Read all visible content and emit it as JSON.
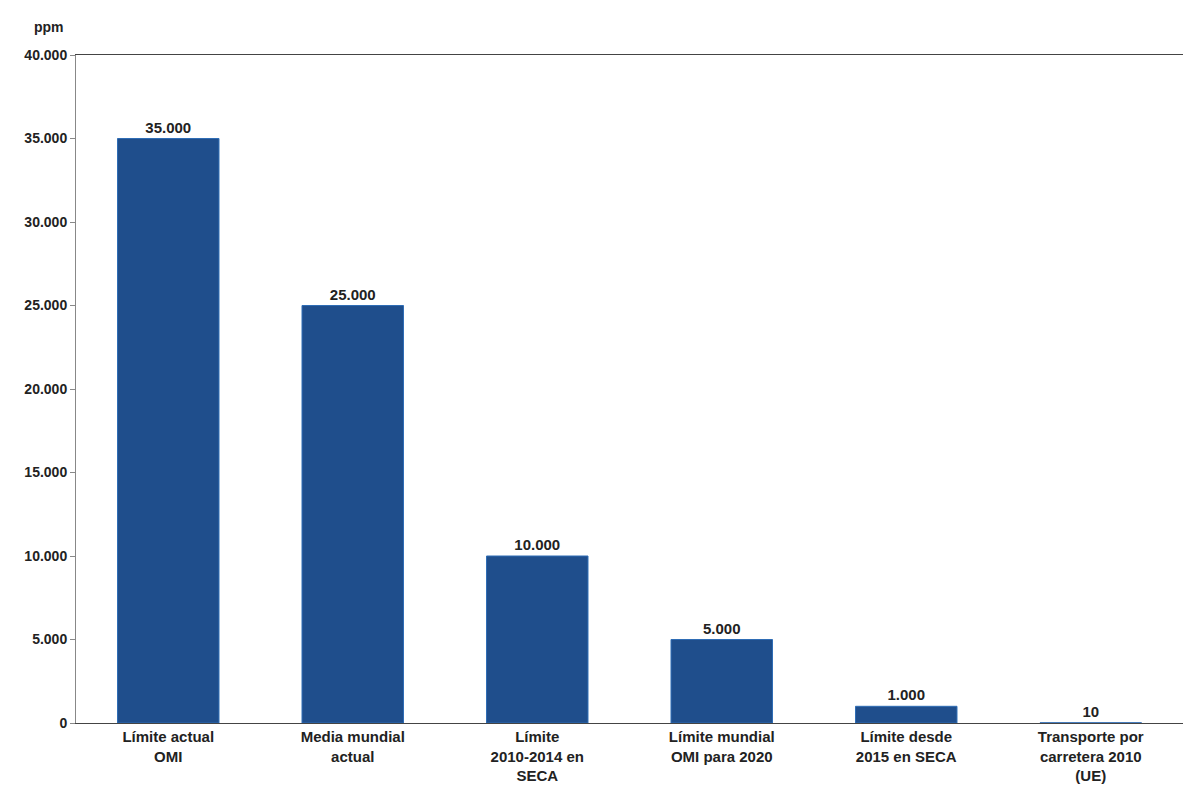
{
  "chart_data": {
    "type": "bar",
    "ylabel": "ppm",
    "categories": [
      "Límite actual OMI",
      "Media mundial actual",
      "Límite 2010-2014 en SECA",
      "Límite mundial OMI para 2020",
      "Límite desde 2015 en SECA",
      "Transporte por carretera 2010 (UE)"
    ],
    "values": [
      35000,
      25000,
      10000,
      5000,
      1000,
      10
    ],
    "value_labels": [
      "35.000",
      "25.000",
      "10.000",
      "5.000",
      "1.000",
      "10"
    ],
    "data_labels": true,
    "color": "#1f4e8c",
    "ylim": [
      0,
      40000
    ],
    "yticks": [
      0,
      {
        "value": 5000,
        "label": "5.000"
      },
      {
        "value": 10000,
        "label": "10.000"
      },
      {
        "value": 15000,
        "label": "15.000"
      },
      {
        "value": 20000,
        "label": "20.000"
      },
      {
        "value": 25000,
        "label": "25.000"
      },
      {
        "value": 30000,
        "label": "30.000"
      },
      {
        "value": 35000,
        "label": "35.000"
      },
      {
        "value": 40000,
        "label": "40.000"
      }
    ],
    "grid": false
  }
}
